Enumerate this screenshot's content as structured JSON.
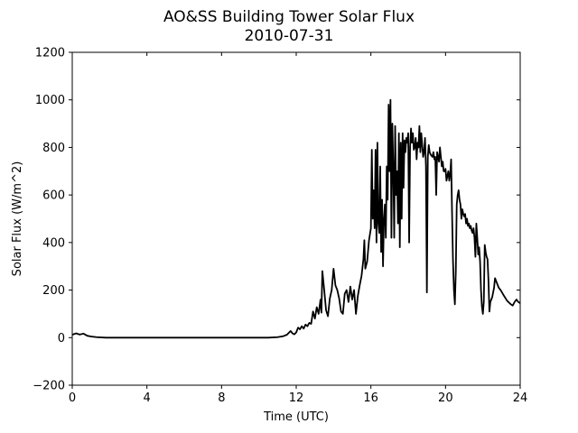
{
  "chart_data": {
    "type": "line",
    "title": "AO&SS Building Tower Solar Flux",
    "subtitle": "2010-07-31",
    "xlabel": "Time (UTC)",
    "ylabel": "Solar Flux (W/m^2)",
    "xlim": [
      0,
      24
    ],
    "ylim": [
      -200,
      1200
    ],
    "xticks": [
      0,
      4,
      8,
      12,
      16,
      20,
      24
    ],
    "yticks": [
      -200,
      0,
      200,
      400,
      600,
      800,
      1000,
      1200
    ],
    "grid": false,
    "legend": "none",
    "series": [
      {
        "color": "#000000",
        "points": [
          [
            0.0,
            12
          ],
          [
            0.2,
            18
          ],
          [
            0.4,
            13
          ],
          [
            0.6,
            17
          ],
          [
            0.8,
            8
          ],
          [
            1.0,
            5
          ],
          [
            1.3,
            2
          ],
          [
            1.8,
            0
          ],
          [
            3.0,
            0
          ],
          [
            6.0,
            0
          ],
          [
            9.0,
            0
          ],
          [
            10.5,
            0
          ],
          [
            11.0,
            2
          ],
          [
            11.3,
            6
          ],
          [
            11.5,
            12
          ],
          [
            11.7,
            28
          ],
          [
            11.8,
            18
          ],
          [
            11.9,
            14
          ],
          [
            12.0,
            22
          ],
          [
            12.1,
            42
          ],
          [
            12.2,
            35
          ],
          [
            12.3,
            48
          ],
          [
            12.4,
            38
          ],
          [
            12.5,
            55
          ],
          [
            12.6,
            48
          ],
          [
            12.7,
            62
          ],
          [
            12.8,
            58
          ],
          [
            12.9,
            110
          ],
          [
            13.0,
            80
          ],
          [
            13.1,
            128
          ],
          [
            13.2,
            100
          ],
          [
            13.3,
            160
          ],
          [
            13.35,
            105
          ],
          [
            13.4,
            280
          ],
          [
            13.5,
            200
          ],
          [
            13.6,
            115
          ],
          [
            13.7,
            90
          ],
          [
            13.8,
            165
          ],
          [
            13.9,
            200
          ],
          [
            14.0,
            290
          ],
          [
            14.1,
            220
          ],
          [
            14.2,
            200
          ],
          [
            14.3,
            165
          ],
          [
            14.4,
            110
          ],
          [
            14.5,
            100
          ],
          [
            14.6,
            185
          ],
          [
            14.7,
            200
          ],
          [
            14.8,
            150
          ],
          [
            14.9,
            215
          ],
          [
            15.0,
            160
          ],
          [
            15.1,
            200
          ],
          [
            15.2,
            100
          ],
          [
            15.3,
            175
          ],
          [
            15.4,
            220
          ],
          [
            15.5,
            260
          ],
          [
            15.6,
            330
          ],
          [
            15.65,
            410
          ],
          [
            15.7,
            290
          ],
          [
            15.8,
            320
          ],
          [
            15.9,
            410
          ],
          [
            16.0,
            460
          ],
          [
            16.05,
            790
          ],
          [
            16.1,
            500
          ],
          [
            16.15,
            620
          ],
          [
            16.2,
            460
          ],
          [
            16.25,
            790
          ],
          [
            16.3,
            400
          ],
          [
            16.35,
            820
          ],
          [
            16.4,
            480
          ],
          [
            16.45,
            440
          ],
          [
            16.5,
            720
          ],
          [
            16.55,
            360
          ],
          [
            16.6,
            580
          ],
          [
            16.65,
            300
          ],
          [
            16.7,
            500
          ],
          [
            16.75,
            560
          ],
          [
            16.8,
            420
          ],
          [
            16.85,
            720
          ],
          [
            16.9,
            580
          ],
          [
            16.95,
            980
          ],
          [
            17.0,
            700
          ],
          [
            17.05,
            1000
          ],
          [
            17.1,
            420
          ],
          [
            17.15,
            900
          ],
          [
            17.2,
            720
          ],
          [
            17.25,
            420
          ],
          [
            17.3,
            890
          ],
          [
            17.35,
            600
          ],
          [
            17.4,
            700
          ],
          [
            17.45,
            480
          ],
          [
            17.5,
            860
          ],
          [
            17.55,
            380
          ],
          [
            17.6,
            820
          ],
          [
            17.65,
            500
          ],
          [
            17.7,
            860
          ],
          [
            17.75,
            630
          ],
          [
            17.8,
            830
          ],
          [
            17.85,
            780
          ],
          [
            17.9,
            840
          ],
          [
            17.95,
            820
          ],
          [
            18.0,
            860
          ],
          [
            18.05,
            400
          ],
          [
            18.1,
            800
          ],
          [
            18.15,
            880
          ],
          [
            18.2,
            820
          ],
          [
            18.25,
            860
          ],
          [
            18.3,
            790
          ],
          [
            18.35,
            800
          ],
          [
            18.4,
            840
          ],
          [
            18.45,
            750
          ],
          [
            18.5,
            820
          ],
          [
            18.55,
            800
          ],
          [
            18.6,
            890
          ],
          [
            18.65,
            780
          ],
          [
            18.7,
            860
          ],
          [
            18.75,
            810
          ],
          [
            18.8,
            760
          ],
          [
            18.85,
            780
          ],
          [
            18.9,
            840
          ],
          [
            18.95,
            720
          ],
          [
            19.0,
            190
          ],
          [
            19.05,
            760
          ],
          [
            19.1,
            810
          ],
          [
            19.15,
            780
          ],
          [
            19.2,
            770
          ],
          [
            19.3,
            760
          ],
          [
            19.35,
            780
          ],
          [
            19.4,
            750
          ],
          [
            19.45,
            760
          ],
          [
            19.5,
            600
          ],
          [
            19.55,
            780
          ],
          [
            19.6,
            760
          ],
          [
            19.65,
            740
          ],
          [
            19.7,
            800
          ],
          [
            19.75,
            760
          ],
          [
            19.8,
            720
          ],
          [
            19.85,
            740
          ],
          [
            19.9,
            700
          ],
          [
            19.95,
            700
          ],
          [
            20.0,
            710
          ],
          [
            20.05,
            660
          ],
          [
            20.1,
            680
          ],
          [
            20.15,
            700
          ],
          [
            20.2,
            660
          ],
          [
            20.25,
            690
          ],
          [
            20.3,
            750
          ],
          [
            20.35,
            520
          ],
          [
            20.4,
            320
          ],
          [
            20.45,
            200
          ],
          [
            20.5,
            140
          ],
          [
            20.55,
            280
          ],
          [
            20.6,
            560
          ],
          [
            20.65,
            600
          ],
          [
            20.7,
            620
          ],
          [
            20.75,
            580
          ],
          [
            20.8,
            560
          ],
          [
            20.85,
            500
          ],
          [
            20.9,
            540
          ],
          [
            20.95,
            520
          ],
          [
            21.0,
            510
          ],
          [
            21.05,
            520
          ],
          [
            21.1,
            480
          ],
          [
            21.15,
            500
          ],
          [
            21.2,
            470
          ],
          [
            21.25,
            480
          ],
          [
            21.3,
            460
          ],
          [
            21.35,
            470
          ],
          [
            21.4,
            450
          ],
          [
            21.45,
            440
          ],
          [
            21.5,
            460
          ],
          [
            21.55,
            420
          ],
          [
            21.6,
            340
          ],
          [
            21.65,
            480
          ],
          [
            21.7,
            420
          ],
          [
            21.75,
            350
          ],
          [
            21.8,
            380
          ],
          [
            21.85,
            320
          ],
          [
            21.9,
            200
          ],
          [
            21.95,
            130
          ],
          [
            22.0,
            100
          ],
          [
            22.05,
            150
          ],
          [
            22.1,
            390
          ],
          [
            22.15,
            360
          ],
          [
            22.2,
            340
          ],
          [
            22.25,
            330
          ],
          [
            22.3,
            240
          ],
          [
            22.35,
            110
          ],
          [
            22.4,
            150
          ],
          [
            22.45,
            160
          ],
          [
            22.5,
            170
          ],
          [
            22.6,
            210
          ],
          [
            22.65,
            250
          ],
          [
            22.75,
            230
          ],
          [
            22.85,
            210
          ],
          [
            22.95,
            200
          ],
          [
            23.1,
            180
          ],
          [
            23.3,
            155
          ],
          [
            23.5,
            140
          ],
          [
            23.6,
            135
          ],
          [
            23.7,
            150
          ],
          [
            23.8,
            160
          ],
          [
            23.9,
            150
          ],
          [
            24.0,
            145
          ]
        ]
      }
    ]
  }
}
